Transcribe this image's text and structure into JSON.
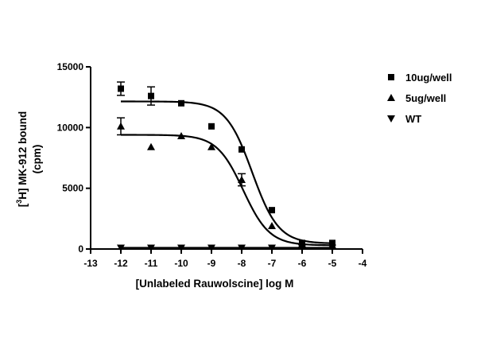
{
  "chart_data": {
    "type": "scatter",
    "xlabel": "[Unlabeled Rauwolscine] log M",
    "ylabel_parts": {
      "open": "[",
      "superscript": "3",
      "main": "H] MK-912 bound",
      "unit": "(cpm)"
    },
    "xlim": [
      -13,
      -4
    ],
    "ylim": [
      0,
      15000
    ],
    "x_ticks": [
      -13,
      -12,
      -11,
      -10,
      -9,
      -8,
      -7,
      -6,
      -5,
      -4
    ],
    "y_ticks": [
      0,
      5000,
      10000,
      15000
    ],
    "grid": false,
    "legend_position": "top-right",
    "series": [
      {
        "name": "10ug/well",
        "marker": "square",
        "color": "#000000",
        "points": [
          {
            "x": -12,
            "y": 13200,
            "err": 550
          },
          {
            "x": -11,
            "y": 12600,
            "err": 750
          },
          {
            "x": -10,
            "y": 12000,
            "err": 0
          },
          {
            "x": -9,
            "y": 10100,
            "err": 0
          },
          {
            "x": -8,
            "y": 8200,
            "err": 0
          },
          {
            "x": -7,
            "y": 3200,
            "err": 0
          },
          {
            "x": -6,
            "y": 500,
            "err": 0
          },
          {
            "x": -5,
            "y": 500,
            "err": 0
          }
        ],
        "fit": {
          "top": 12150,
          "bottom": 450,
          "logIC50": -7.65,
          "hill": 1.0
        }
      },
      {
        "name": "5ug/well",
        "marker": "triangle-up",
        "color": "#000000",
        "points": [
          {
            "x": -12,
            "y": 10100,
            "err": 700
          },
          {
            "x": -11,
            "y": 8400,
            "err": 0
          },
          {
            "x": -10,
            "y": 9300,
            "err": 0
          },
          {
            "x": -9,
            "y": 8400,
            "err": 0
          },
          {
            "x": -8,
            "y": 5700,
            "err": 500
          },
          {
            "x": -7,
            "y": 1900,
            "err": 0
          },
          {
            "x": -6,
            "y": 400,
            "err": 0
          },
          {
            "x": -5,
            "y": 300,
            "err": 0
          }
        ],
        "fit": {
          "top": 9400,
          "bottom": 300,
          "logIC50": -7.95,
          "hill": 1.0
        }
      },
      {
        "name": "WT",
        "marker": "triangle-down",
        "color": "#000000",
        "points": [
          {
            "x": -12,
            "y": 100,
            "err": 0
          },
          {
            "x": -11,
            "y": 100,
            "err": 0
          },
          {
            "x": -10,
            "y": 100,
            "err": 0
          },
          {
            "x": -9,
            "y": 100,
            "err": 0
          },
          {
            "x": -8,
            "y": 100,
            "err": 0
          },
          {
            "x": -7,
            "y": 100,
            "err": 0
          },
          {
            "x": -6,
            "y": 100,
            "err": 0
          },
          {
            "x": -5,
            "y": 100,
            "err": 0
          }
        ],
        "fit": {
          "top": 100,
          "bottom": 100,
          "logIC50": -8,
          "hill": 1.0
        }
      }
    ]
  }
}
